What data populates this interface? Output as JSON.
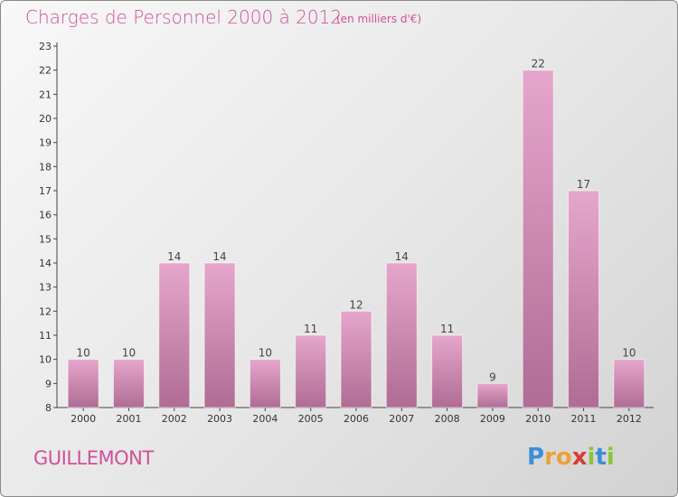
{
  "header": {
    "title": "Charges de Personnel 2000 à 2012",
    "subtitle": "(en milliers d'€)"
  },
  "footer": {
    "town": "GUILLEMONT",
    "logo_letters": [
      "P",
      "r",
      "o",
      "x",
      "i",
      "t",
      "i"
    ],
    "logo_colors": [
      "#3a8fd8",
      "#e8a23a",
      "#e8a23a",
      "#d83a3a",
      "#8bc53a",
      "#3a8fd8",
      "#8bc53a"
    ]
  },
  "colors": {
    "bar_top": "#e6a6cc",
    "bar_bottom": "#b06c94",
    "axis": "#444444"
  },
  "chart_data": {
    "type": "bar",
    "title": "Charges de Personnel 2000 à 2012",
    "subtitle": "(en milliers d'€)",
    "categories": [
      "2000",
      "2001",
      "2002",
      "2003",
      "2004",
      "2005",
      "2006",
      "2007",
      "2008",
      "2009",
      "2010",
      "2011",
      "2012"
    ],
    "values": [
      10,
      10,
      14,
      14,
      10,
      11,
      12,
      14,
      11,
      9,
      22,
      17,
      10
    ],
    "ylim": [
      8,
      23
    ],
    "yticks": [
      8,
      9,
      10,
      11,
      12,
      13,
      14,
      15,
      16,
      17,
      18,
      19,
      20,
      21,
      22,
      23
    ],
    "grid": false,
    "legend": "none"
  }
}
